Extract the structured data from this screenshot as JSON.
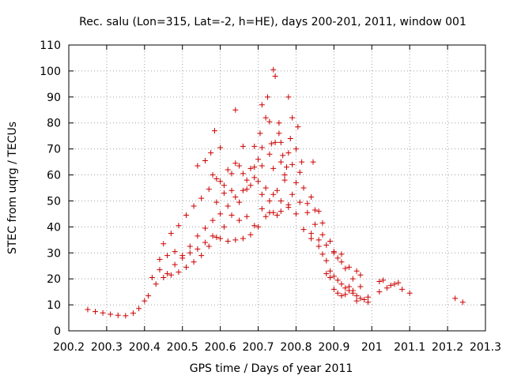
{
  "chart_data": {
    "type": "scatter",
    "title": "Rec. salu (Lon=315, Lat=-2, h=HE), days 200-201, 2011, window 001",
    "xlabel": "GPS time / Days of year 2011",
    "ylabel": "STEC from uqrg / TECUs",
    "xlim": [
      200.2,
      201.3
    ],
    "ylim": [
      0,
      110
    ],
    "x_ticks": [
      "200.2",
      "200.3",
      "200.4",
      "200.5",
      "200.6",
      "200.7",
      "200.8",
      "200.9",
      "201",
      "201.1",
      "201.2",
      "201.3"
    ],
    "y_ticks": [
      "0",
      "10",
      "20",
      "30",
      "40",
      "50",
      "60",
      "70",
      "80",
      "90",
      "100",
      "110"
    ],
    "grid": true,
    "marker": "+",
    "color": "#cc0000",
    "series": [
      {
        "points": [
          [
            200.25,
            8.2
          ],
          [
            200.27,
            7.4
          ],
          [
            200.29,
            6.9
          ],
          [
            200.31,
            6.4
          ],
          [
            200.33,
            6.0
          ],
          [
            200.35,
            5.8
          ],
          [
            200.37,
            6.8
          ],
          [
            200.385,
            8.6
          ],
          [
            200.4,
            11.5
          ],
          [
            200.41,
            13.5
          ],
          [
            200.43,
            18.0
          ],
          [
            200.45,
            20.5
          ],
          [
            200.47,
            21.5
          ],
          [
            200.49,
            22.6
          ],
          [
            200.51,
            24.5
          ],
          [
            200.53,
            26.5
          ],
          [
            200.55,
            29.0
          ],
          [
            200.57,
            32.5
          ],
          [
            200.59,
            36.0
          ],
          [
            200.61,
            40.0
          ],
          [
            200.63,
            44.5
          ],
          [
            200.65,
            49.5
          ],
          [
            200.67,
            54.5
          ],
          [
            200.69,
            59.0
          ],
          [
            200.71,
            63.5
          ],
          [
            200.73,
            68.0
          ],
          [
            200.745,
            72.5
          ],
          [
            200.755,
            76.0
          ],
          [
            200.42,
            20.5
          ],
          [
            200.44,
            23.5
          ],
          [
            200.46,
            22.0
          ],
          [
            200.48,
            25.5
          ],
          [
            200.5,
            28.0
          ],
          [
            200.52,
            30.0
          ],
          [
            200.54,
            31.5
          ],
          [
            200.56,
            34.0
          ],
          [
            200.58,
            36.5
          ],
          [
            200.6,
            35.5
          ],
          [
            200.62,
            34.5
          ],
          [
            200.64,
            35.0
          ],
          [
            200.66,
            35.5
          ],
          [
            200.68,
            37.0
          ],
          [
            200.7,
            40.0
          ],
          [
            200.72,
            44.0
          ],
          [
            200.74,
            45.5
          ],
          [
            200.76,
            46.0
          ],
          [
            200.78,
            48.5
          ],
          [
            200.44,
            27.5
          ],
          [
            200.46,
            29.0
          ],
          [
            200.48,
            30.5
          ],
          [
            200.5,
            29.0
          ],
          [
            200.52,
            32.5
          ],
          [
            200.54,
            36.5
          ],
          [
            200.56,
            39.5
          ],
          [
            200.58,
            42.5
          ],
          [
            200.6,
            45.0
          ],
          [
            200.62,
            48.0
          ],
          [
            200.64,
            51.5
          ],
          [
            200.66,
            54.0
          ],
          [
            200.68,
            56.0
          ],
          [
            200.7,
            57.5
          ],
          [
            200.72,
            55.0
          ],
          [
            200.74,
            52.5
          ],
          [
            200.76,
            50.0
          ],
          [
            200.78,
            47.5
          ],
          [
            200.8,
            45.0
          ],
          [
            200.45,
            33.5
          ],
          [
            200.47,
            37.5
          ],
          [
            200.49,
            40.5
          ],
          [
            200.51,
            44.5
          ],
          [
            200.53,
            48.0
          ],
          [
            200.55,
            51.0
          ],
          [
            200.57,
            54.5
          ],
          [
            200.59,
            58.5
          ],
          [
            200.61,
            56.0
          ],
          [
            200.63,
            60.5
          ],
          [
            200.65,
            63.5
          ],
          [
            200.67,
            58.0
          ],
          [
            200.69,
            63.0
          ],
          [
            200.71,
            52.5
          ],
          [
            200.73,
            50.0
          ],
          [
            200.75,
            54.0
          ],
          [
            200.77,
            60.0
          ],
          [
            200.79,
            64.0
          ],
          [
            200.81,
            61.0
          ],
          [
            200.54,
            63.5
          ],
          [
            200.56,
            65.5
          ],
          [
            200.575,
            68.5
          ],
          [
            200.585,
            77.0
          ],
          [
            200.6,
            70.5
          ],
          [
            200.64,
            85.0
          ],
          [
            200.66,
            71.0
          ],
          [
            200.69,
            71.0
          ],
          [
            200.705,
            76.0
          ],
          [
            200.71,
            87.0
          ],
          [
            200.72,
            82.0
          ],
          [
            200.725,
            90.0
          ],
          [
            200.73,
            80.5
          ],
          [
            200.735,
            72.0
          ],
          [
            200.74,
            100.5
          ],
          [
            200.745,
            98.0
          ],
          [
            200.755,
            80.0
          ],
          [
            200.76,
            72.5
          ],
          [
            200.765,
            67.5
          ],
          [
            200.775,
            63.0
          ],
          [
            200.78,
            90.0
          ],
          [
            200.785,
            74.0
          ],
          [
            200.79,
            82.0
          ],
          [
            200.8,
            70.0
          ],
          [
            200.805,
            78.5
          ],
          [
            200.815,
            65.0
          ],
          [
            200.58,
            60.0
          ],
          [
            200.6,
            57.5
          ],
          [
            200.62,
            62.0
          ],
          [
            200.64,
            64.5
          ],
          [
            200.66,
            60.5
          ],
          [
            200.68,
            62.5
          ],
          [
            200.7,
            66.0
          ],
          [
            200.71,
            70.5
          ],
          [
            200.74,
            62.5
          ],
          [
            200.76,
            65.0
          ],
          [
            200.78,
            68.5
          ],
          [
            200.8,
            57.0
          ],
          [
            200.82,
            55.0
          ],
          [
            200.84,
            51.5
          ],
          [
            200.845,
            65.0
          ],
          [
            200.86,
            46.0
          ],
          [
            200.59,
            49.5
          ],
          [
            200.61,
            53.0
          ],
          [
            200.63,
            54.0
          ],
          [
            200.65,
            42.5
          ],
          [
            200.67,
            44.0
          ],
          [
            200.69,
            40.5
          ],
          [
            200.71,
            47.0
          ],
          [
            200.73,
            45.5
          ],
          [
            200.75,
            44.5
          ],
          [
            200.77,
            58.0
          ],
          [
            200.79,
            52.5
          ],
          [
            200.81,
            49.5
          ],
          [
            200.83,
            49.0
          ],
          [
            200.85,
            46.5
          ],
          [
            200.87,
            41.5
          ],
          [
            200.82,
            39.0
          ],
          [
            200.84,
            37.5
          ],
          [
            200.86,
            35.0
          ],
          [
            200.88,
            33.0
          ],
          [
            200.9,
            30.0
          ],
          [
            200.91,
            28.0
          ],
          [
            200.92,
            26.5
          ],
          [
            200.94,
            24.5
          ],
          [
            200.96,
            23.0
          ],
          [
            200.97,
            21.5
          ],
          [
            200.83,
            45.5
          ],
          [
            200.85,
            41.0
          ],
          [
            200.87,
            37.0
          ],
          [
            200.89,
            34.5
          ],
          [
            200.9,
            30.5
          ],
          [
            200.92,
            29.5
          ],
          [
            200.93,
            24.0
          ],
          [
            200.95,
            20.0
          ],
          [
            200.97,
            17.0
          ],
          [
            200.99,
            13.0
          ],
          [
            200.84,
            35.5
          ],
          [
            200.86,
            32.5
          ],
          [
            200.87,
            29.5
          ],
          [
            200.88,
            27.0
          ],
          [
            200.89,
            23.0
          ],
          [
            200.9,
            21.0
          ],
          [
            200.91,
            19.5
          ],
          [
            200.92,
            18.0
          ],
          [
            200.93,
            16.5
          ],
          [
            200.94,
            15.5
          ],
          [
            200.95,
            14.5
          ],
          [
            200.96,
            13.5
          ],
          [
            200.97,
            12.5
          ],
          [
            200.98,
            12.0
          ],
          [
            200.88,
            22.0
          ],
          [
            200.89,
            20.5
          ],
          [
            200.9,
            16.0
          ],
          [
            200.91,
            14.5
          ],
          [
            200.92,
            13.5
          ],
          [
            200.93,
            14.0
          ],
          [
            200.94,
            17.0
          ],
          [
            200.95,
            15.5
          ],
          [
            200.96,
            11.5
          ],
          [
            200.99,
            11.0
          ],
          [
            201.02,
            15.0
          ],
          [
            201.02,
            19.0
          ],
          [
            201.03,
            19.5
          ],
          [
            201.04,
            16.5
          ],
          [
            201.05,
            17.5
          ],
          [
            201.06,
            18.0
          ],
          [
            201.07,
            18.5
          ],
          [
            201.08,
            16.0
          ],
          [
            201.1,
            14.5
          ],
          [
            201.22,
            12.5
          ],
          [
            201.24,
            11.0
          ]
        ]
      }
    ]
  }
}
